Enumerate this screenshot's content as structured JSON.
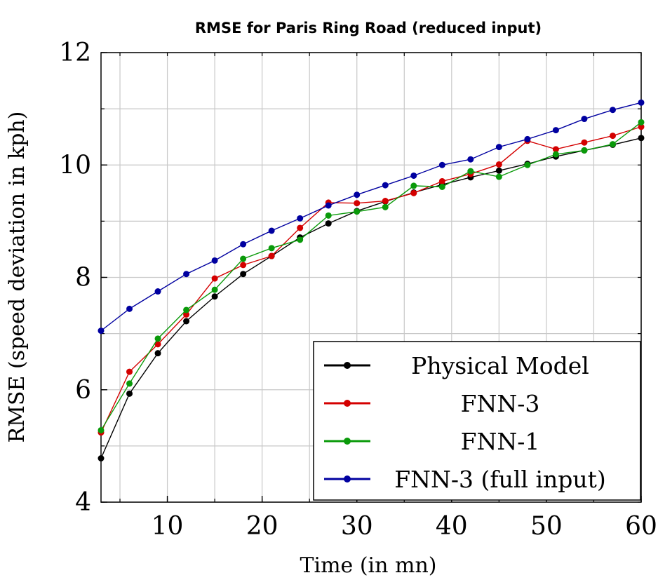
{
  "chart_data": {
    "type": "line",
    "title": "RMSE for Paris Ring Road (reduced input)",
    "xlabel": "Time (in mn)",
    "ylabel": "RMSE (speed deviation in kph)",
    "xlim": [
      3,
      60
    ],
    "ylim": [
      4,
      12
    ],
    "xticks": [
      10,
      20,
      30,
      40,
      50,
      60
    ],
    "xtick_labels": [
      "10",
      "20",
      "30",
      "40",
      "50",
      "60"
    ],
    "yticks": [
      4,
      6,
      8,
      10,
      12
    ],
    "ytick_labels": [
      "4",
      "6",
      "8",
      "10",
      "12"
    ],
    "grid": true,
    "legend_position": "bottom-right",
    "x": [
      3,
      6,
      9,
      12,
      15,
      18,
      21,
      24,
      27,
      30,
      33,
      36,
      39,
      42,
      45,
      48,
      51,
      54,
      57,
      60
    ],
    "series": [
      {
        "name": "Physical Model",
        "color": "#000000",
        "values": [
          4.78,
          5.93,
          6.65,
          7.22,
          7.66,
          8.06,
          8.38,
          8.71,
          8.96,
          9.18,
          9.35,
          9.51,
          9.65,
          9.78,
          9.9,
          10.02,
          10.15,
          10.26,
          10.36,
          10.48
        ]
      },
      {
        "name": "FNN-3",
        "color": "#d40000",
        "values": [
          5.24,
          6.32,
          6.81,
          7.34,
          7.98,
          8.22,
          8.38,
          8.88,
          9.33,
          9.32,
          9.36,
          9.5,
          9.71,
          9.84,
          10.01,
          10.43,
          10.28,
          10.4,
          10.52,
          10.68
        ]
      },
      {
        "name": "FNN-1",
        "color": "#0a9a0a",
        "values": [
          5.28,
          6.11,
          6.91,
          7.42,
          7.78,
          8.33,
          8.52,
          8.67,
          9.1,
          9.17,
          9.25,
          9.63,
          9.61,
          9.89,
          9.79,
          10.0,
          10.19,
          10.26,
          10.37,
          10.76
        ]
      },
      {
        "name": "FNN-3 (full input)",
        "color": "#0000a0",
        "values": [
          7.05,
          7.44,
          7.75,
          8.06,
          8.3,
          8.59,
          8.83,
          9.05,
          9.28,
          9.47,
          9.64,
          9.81,
          10.0,
          10.1,
          10.32,
          10.46,
          10.62,
          10.82,
          10.98,
          11.11
        ]
      }
    ]
  }
}
